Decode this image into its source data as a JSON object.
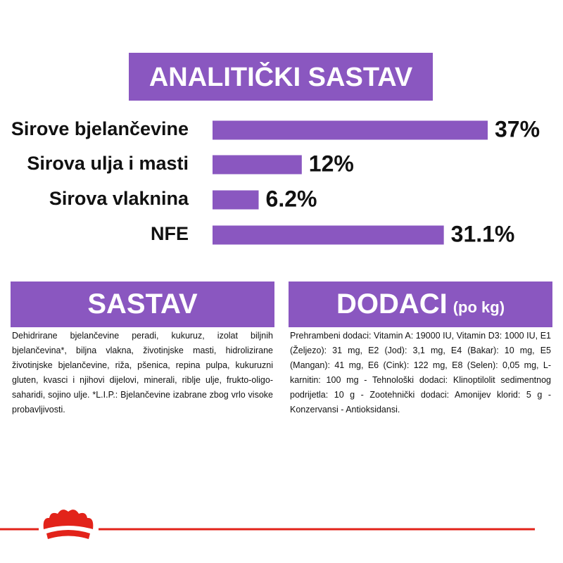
{
  "chart_data": {
    "type": "bar",
    "orientation": "horizontal",
    "title": "ANALITIČKI SASTAV",
    "categories": [
      "Sirove bjelančevine",
      "Sirova ulja i masti",
      "Sirova vlaknina",
      "NFE"
    ],
    "values": [
      37,
      12,
      6.2,
      31.1
    ],
    "value_labels": [
      "37%",
      "12%",
      "6.2%",
      "31.1%"
    ],
    "color": "#8a57c0"
  },
  "panels": [
    {
      "title": "SASTAV",
      "text": "Dehidrirane bjelančevine peradi, kukuruz, izolat biljnih bjelančevina*, biljna vlakna, životinjske masti, hidrolizirane životinjske bjelančevine, riža, pšenica, repina pulpa, kukuruzni gluten, kvasci i njihovi dijelovi, minerali, riblje ulje, frukto-oligo-saharidi, sojino ulje. *L.I.P.: Bjelančevine izabrane zbog vrlo visoke probavljivosti."
    },
    {
      "title": "DODACI",
      "subtitle": "(po kg)",
      "text": "Prehrambeni dodaci: Vitamin A: 19000 IU, Vitamin D3: 1000 IU, E1 (Željezo): 31 mg, E2 (Jod): 3,1 mg, E4 (Bakar): 10 mg, E5 (Mangan): 41 mg, E6 (Cink): 122 mg, E8 (Selen): 0,05 mg, L-karnitin: 100 mg - Tehnološki dodaci: Klinoptilolit sedimentnog podrijetla: 10 g - Zootehnički dodaci: Amonijev klorid: 5 g - Konzervansi - Antioksidansi."
    }
  ]
}
